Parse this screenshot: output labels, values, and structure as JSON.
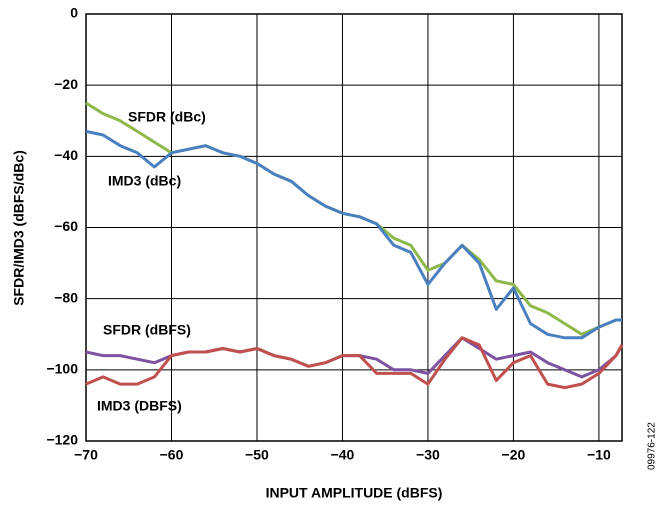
{
  "chart_data": {
    "type": "line",
    "xlabel": "INPUT AMPLITUDE (dBFS)",
    "ylabel": "SFDR/IMD3 (dBFS/dBc)",
    "annotation": "09976-122",
    "x": [
      -70,
      -68,
      -66,
      -64,
      -62,
      -60,
      -58,
      -56,
      -54,
      -52,
      -50,
      -48,
      -46,
      -44,
      -42,
      -40,
      -38,
      -36,
      -34,
      -32,
      -30,
      -28,
      -26,
      -24,
      -22,
      -20,
      -18,
      -16,
      -14,
      -12,
      -10,
      -8,
      -7.3
    ],
    "series": [
      {
        "name": "SFDR (dBc)",
        "color": "#8db84a",
        "values": [
          -25,
          -28,
          -30,
          -33,
          -36,
          -39,
          -38,
          -37,
          -39,
          -40,
          -42,
          -45,
          -47,
          -51,
          -54,
          -56,
          -57,
          -59,
          -63,
          -65,
          -72,
          -70,
          -65,
          -69,
          -75,
          -76,
          -82,
          -84,
          -87,
          -90,
          -88,
          -86,
          -86
        ]
      },
      {
        "name": "IMD3 (dBc)",
        "color": "#4a7fc0",
        "values": [
          -33,
          -34,
          -37,
          -39,
          -43,
          -39,
          -38,
          -37,
          -39,
          -40,
          -42,
          -45,
          -47,
          -51,
          -54,
          -56,
          -57,
          -59,
          -65,
          -67,
          -76,
          -70,
          -65,
          -70,
          -83,
          -77,
          -87,
          -90,
          -91,
          -91,
          -88,
          -86,
          -86
        ]
      },
      {
        "name": "SFDR (dBFS)",
        "color": "#7d52a0",
        "values": [
          -95,
          -96,
          -96,
          -97,
          -98,
          -96,
          -95,
          -95,
          -94,
          -95,
          -94,
          -96,
          -97,
          -99,
          -98,
          -96,
          -96,
          -97,
          -100,
          -100,
          -101,
          -96,
          -91,
          -94,
          -97,
          -96,
          -95,
          -98,
          -100,
          -102,
          -100,
          -96,
          -93
        ]
      },
      {
        "name": "IMD3 (DBFS)",
        "color": "#c0504d",
        "values": [
          -104,
          -102,
          -104,
          -104,
          -102,
          -96,
          -95,
          -95,
          -94,
          -95,
          -94,
          -96,
          -97,
          -99,
          -98,
          -96,
          -96,
          -101,
          -101,
          -101,
          -104,
          -97,
          -91,
          -93,
          -103,
          -98,
          -96,
          -104,
          -105,
          -104,
          -101,
          -96,
          -93
        ]
      }
    ],
    "xlim": [
      -70,
      -7.3
    ],
    "ylim": [
      -120,
      0
    ],
    "xticks": [
      {
        "value": -70,
        "label": "−70"
      },
      {
        "value": -60,
        "label": "−60"
      },
      {
        "value": -50,
        "label": "−50"
      },
      {
        "value": -40,
        "label": "−40"
      },
      {
        "value": -30,
        "label": "−30"
      },
      {
        "value": -20,
        "label": "−20"
      },
      {
        "value": -10,
        "label": "−10"
      }
    ],
    "yticks": [
      {
        "value": -120,
        "label": "−120"
      },
      {
        "value": -100,
        "label": "−100"
      },
      {
        "value": -80,
        "label": "−80"
      },
      {
        "value": -60,
        "label": "−60"
      },
      {
        "value": -40,
        "label": "−40"
      },
      {
        "value": -20,
        "label": "−20"
      },
      0
    ],
    "grid": true
  }
}
